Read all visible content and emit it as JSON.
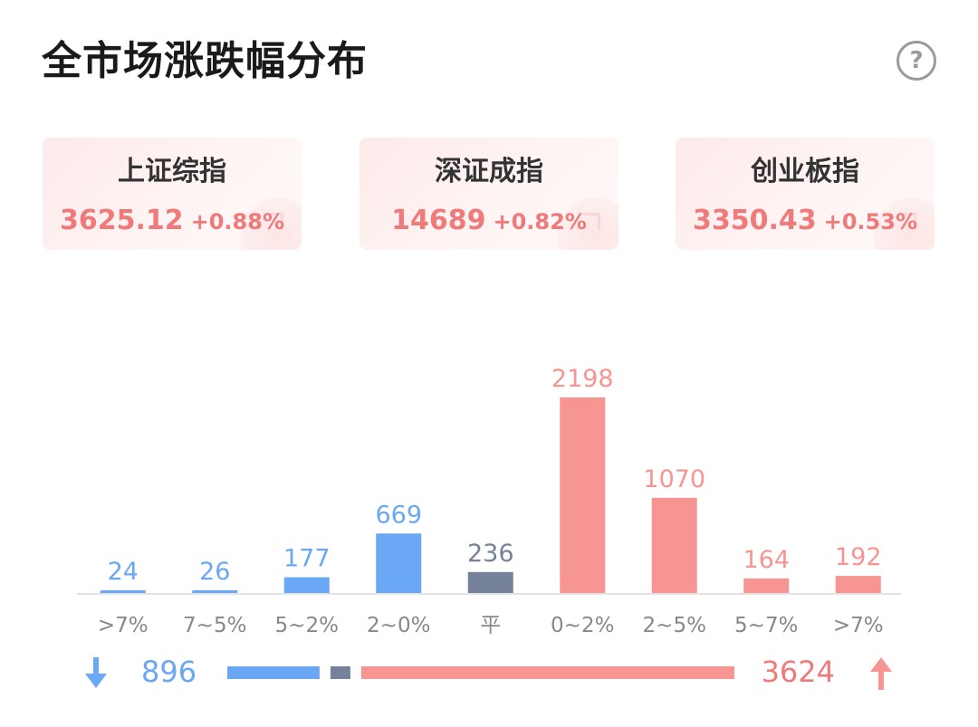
{
  "header": {
    "title": "全市场涨跌幅分布",
    "help_icon": "question-circle-icon",
    "help_glyph": "?"
  },
  "indices": [
    {
      "name": "上证综指",
      "value": "3625.12",
      "change": "+0.88%"
    },
    {
      "name": "深证成指",
      "value": "14689",
      "change": "+0.82%"
    },
    {
      "name": "创业板指",
      "value": "3350.43",
      "change": "+0.53%"
    }
  ],
  "colors": {
    "down": "#6aa7f5",
    "flat": "#75829a",
    "up": "#f69592",
    "up_text": "#f07a7a",
    "axis_label": "#888888",
    "baseline": "#e3e3e3"
  },
  "chart_data": {
    "type": "bar",
    "categories": [
      ">7%",
      "7~5%",
      "5~2%",
      "2~0%",
      "平",
      "0~2%",
      "2~5%",
      "5~7%",
      ">7%"
    ],
    "values": [
      24,
      26,
      177,
      669,
      236,
      2198,
      1070,
      164,
      192
    ],
    "groups": [
      "down",
      "down",
      "down",
      "down",
      "flat",
      "up",
      "up",
      "up",
      "up"
    ],
    "ylim": [
      0,
      2198
    ],
    "grid": false,
    "legend": "none"
  },
  "summary": {
    "down_count": "896",
    "up_count": "3624",
    "flat_count": 236,
    "down_icon": "arrow-down-icon",
    "up_icon": "arrow-up-icon"
  }
}
